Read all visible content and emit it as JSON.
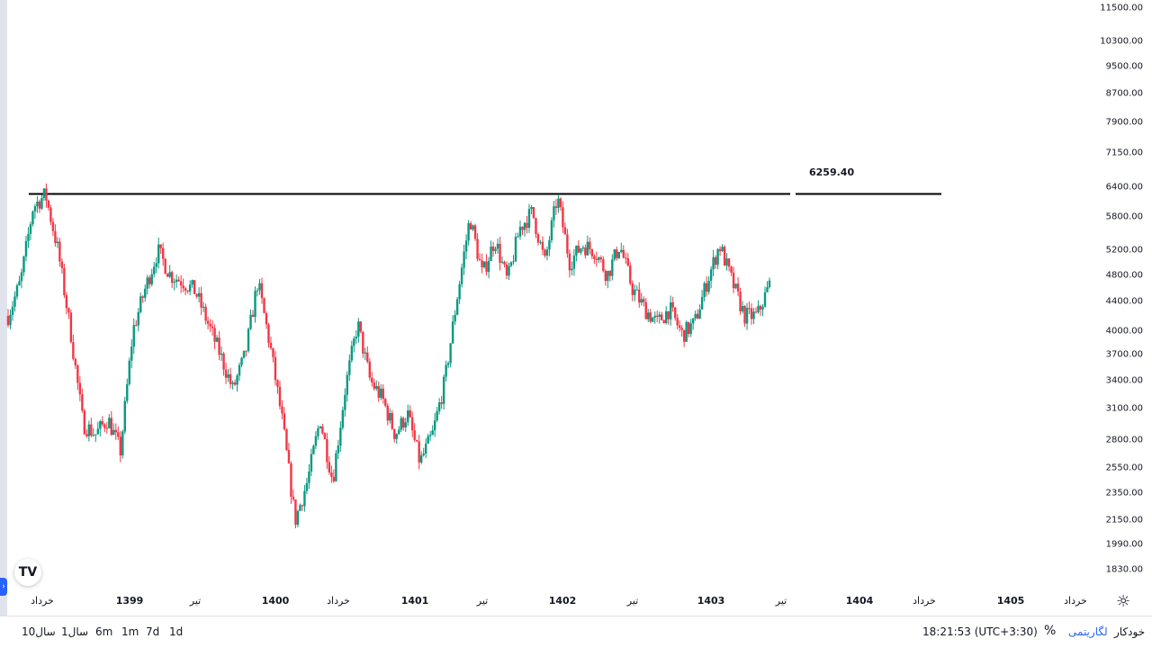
{
  "chart_data": {
    "type": "candlestick",
    "y_scale": "log",
    "ylim": [
      1700,
      12000
    ],
    "y_ticks": [
      "11500.00",
      "10300.00",
      "9500.00",
      "8700.00",
      "7900.00",
      "7150.00",
      "6400.00",
      "5800.00",
      "5200.00",
      "4800.00",
      "4400.00",
      "4000.00",
      "3700.00",
      "3400.00",
      "3100.00",
      "2800.00",
      "2550.00",
      "2350.00",
      "2150.00",
      "1990.00",
      "1830.00"
    ],
    "x_ticks": [
      "خرداد",
      "1399",
      "تیر",
      "1400",
      "خرداد",
      "1401",
      "تیر",
      "1402",
      "تیر",
      "1403",
      "تیر",
      "1404",
      "خرداد",
      "1405",
      "خرداد"
    ],
    "x_ticks_bold": [
      "1399",
      "1400",
      "1401",
      "1402",
      "1403",
      "1404",
      "1405"
    ],
    "level_line": {
      "value": 6259.4,
      "label": "6259.40"
    },
    "up_color": "#089981",
    "down_color": "#f23645",
    "close_path": [
      4200,
      4700,
      6000,
      6250,
      5200,
      4000,
      2950,
      2850,
      3000,
      2700,
      4000,
      4600,
      5200,
      4800,
      4700,
      4550,
      4100,
      3700,
      3300,
      3700,
      4700,
      3800,
      2950,
      2150,
      2450,
      3000,
      2450,
      3300,
      4100,
      3400,
      3200,
      2850,
      3050,
      2600,
      2850,
      3400,
      4500,
      5800,
      4800,
      5400,
      4700,
      5600,
      5900,
      5000,
      6200,
      5000,
      5300,
      5200,
      4800,
      5300,
      4600,
      4300,
      4100,
      4300,
      3950,
      4100,
      4700,
      5300,
      4700,
      4200,
      4200,
      4650
    ]
  },
  "ui": {
    "logo": "TV",
    "ranges": [
      "1d",
      "7d",
      "1m",
      "6m",
      "1سال",
      "10سال"
    ],
    "time": "18:21:53 (UTC+3:30)",
    "percent": "%",
    "log_label": "لگاریتمی",
    "auto_label": "خودکار",
    "gear_icon": "☼",
    "collapse_icon": "›"
  }
}
